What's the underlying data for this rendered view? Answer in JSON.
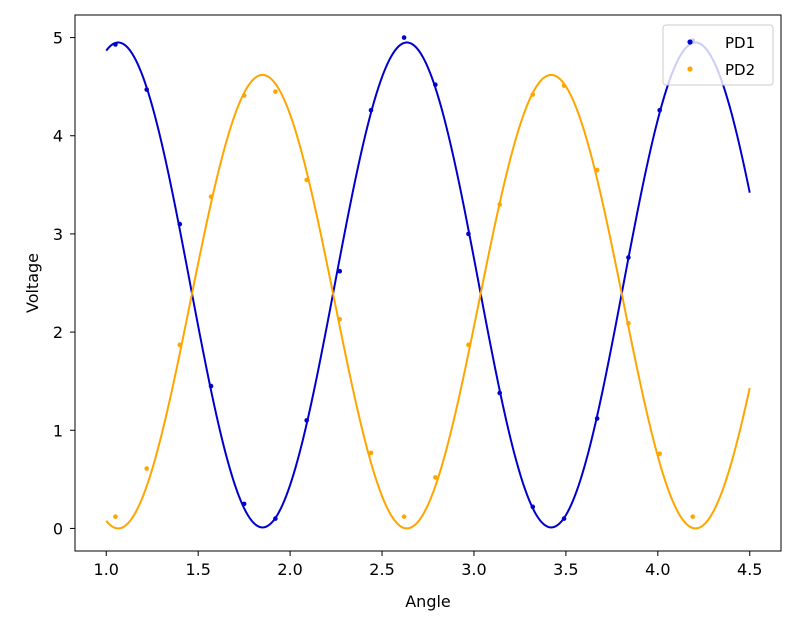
{
  "chart_data": {
    "type": "scatter",
    "xlabel": "Angle",
    "ylabel": "Voltage",
    "xlim": [
      0.83,
      4.67
    ],
    "ylim": [
      -0.23,
      5.23
    ],
    "xticks": [
      "1.0",
      "1.5",
      "2.0",
      "2.5",
      "3.0",
      "3.5",
      "4.0",
      "4.5"
    ],
    "yticks": [
      "0",
      "1",
      "2",
      "3",
      "4",
      "5"
    ],
    "grid": false,
    "legend": {
      "position": "top-right"
    },
    "series": [
      {
        "name": "PD1",
        "color": "#0000cc",
        "points": [
          {
            "x": 1.05,
            "y": 4.93
          },
          {
            "x": 1.22,
            "y": 4.47
          },
          {
            "x": 1.4,
            "y": 3.1
          },
          {
            "x": 1.57,
            "y": 1.45
          },
          {
            "x": 1.75,
            "y": 0.25
          },
          {
            "x": 1.92,
            "y": 0.1
          },
          {
            "x": 2.09,
            "y": 1.1
          },
          {
            "x": 2.27,
            "y": 2.62
          },
          {
            "x": 2.44,
            "y": 4.26
          },
          {
            "x": 2.62,
            "y": 5.0
          },
          {
            "x": 2.79,
            "y": 4.52
          },
          {
            "x": 2.97,
            "y": 3.0
          },
          {
            "x": 3.14,
            "y": 1.38
          },
          {
            "x": 3.32,
            "y": 0.22
          },
          {
            "x": 3.49,
            "y": 0.1
          },
          {
            "x": 3.67,
            "y": 1.12
          },
          {
            "x": 3.84,
            "y": 2.76
          },
          {
            "x": 4.01,
            "y": 4.26
          },
          {
            "x": 4.19,
            "y": 4.97
          }
        ],
        "fit": {
          "amp": 2.47,
          "offset": 2.48,
          "period": 1.57,
          "peak_x": 1.065
        }
      },
      {
        "name": "PD2",
        "color": "#ffa500",
        "points": [
          {
            "x": 1.05,
            "y": 0.12
          },
          {
            "x": 1.22,
            "y": 0.61
          },
          {
            "x": 1.4,
            "y": 1.87
          },
          {
            "x": 1.57,
            "y": 3.38
          },
          {
            "x": 1.75,
            "y": 4.41
          },
          {
            "x": 1.92,
            "y": 4.45
          },
          {
            "x": 2.09,
            "y": 3.55
          },
          {
            "x": 2.27,
            "y": 2.13
          },
          {
            "x": 2.44,
            "y": 0.77
          },
          {
            "x": 2.62,
            "y": 0.12
          },
          {
            "x": 2.79,
            "y": 0.52
          },
          {
            "x": 2.97,
            "y": 1.87
          },
          {
            "x": 3.14,
            "y": 3.3
          },
          {
            "x": 3.32,
            "y": 4.42
          },
          {
            "x": 3.49,
            "y": 4.51
          },
          {
            "x": 3.67,
            "y": 3.65
          },
          {
            "x": 3.84,
            "y": 2.09
          },
          {
            "x": 4.01,
            "y": 0.76
          },
          {
            "x": 4.19,
            "y": 0.12
          }
        ],
        "fit": {
          "amp": 2.31,
          "offset": 2.31,
          "period": 1.57,
          "peak_x": 1.85
        }
      }
    ]
  }
}
